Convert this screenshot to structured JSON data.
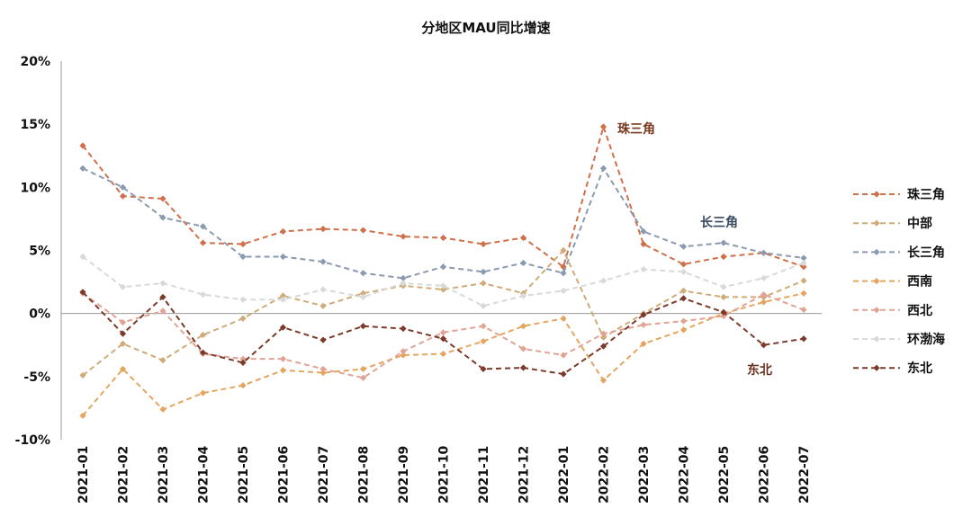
{
  "chart_data": {
    "type": "line",
    "title": "分地区MAU同比增速",
    "xlabel": "",
    "ylabel": "",
    "ylim": [
      -10,
      20
    ],
    "y_tick_labels": [
      "20%",
      "15%",
      "10%",
      "5%",
      "0%",
      "-5%",
      "-10%"
    ],
    "y_tick_values": [
      20,
      15,
      10,
      5,
      0,
      -5,
      -10
    ],
    "grid": false,
    "legend_position": "right",
    "categories": [
      "2021-01",
      "2021-02",
      "2021-03",
      "2021-04",
      "2021-05",
      "2021-06",
      "2021-07",
      "2021-08",
      "2021-09",
      "2021-10",
      "2021-11",
      "2021-12",
      "2022-01",
      "2022-02",
      "2022-03",
      "2022-04",
      "2022-05",
      "2022-06",
      "2022-07"
    ],
    "series": [
      {
        "name": "珠三角",
        "color": "#d0704a",
        "values": [
          13.3,
          9.3,
          9.1,
          5.6,
          5.5,
          6.5,
          6.7,
          6.6,
          6.1,
          6.0,
          5.5,
          6.0,
          3.7,
          14.8,
          5.5,
          3.9,
          4.5,
          4.8,
          3.7
        ]
      },
      {
        "name": "中部",
        "color": "#cfab78",
        "values": [
          -4.9,
          -2.4,
          -3.7,
          -1.7,
          -0.4,
          1.4,
          0.6,
          1.6,
          2.2,
          1.9,
          2.4,
          1.6,
          5.0,
          -1.9,
          0.0,
          1.8,
          1.3,
          1.3,
          2.6
        ]
      },
      {
        "name": "长三角",
        "color": "#8a9ab0",
        "values": [
          11.5,
          10.0,
          7.6,
          6.9,
          4.5,
          4.5,
          4.1,
          3.2,
          2.8,
          3.7,
          3.3,
          4.0,
          3.2,
          11.5,
          6.5,
          5.3,
          5.6,
          4.8,
          4.4
        ]
      },
      {
        "name": "西南",
        "color": "#e6a55f",
        "values": [
          -8.1,
          -4.4,
          -7.6,
          -6.3,
          -5.7,
          -4.5,
          -4.7,
          -4.4,
          -3.3,
          -3.2,
          -2.2,
          -1.0,
          -0.4,
          -5.3,
          -2.4,
          -1.3,
          0.0,
          0.9,
          1.6
        ]
      },
      {
        "name": "西北",
        "color": "#e0a394",
        "values": [
          1.6,
          -0.7,
          0.2,
          -3.2,
          -3.6,
          -3.6,
          -4.4,
          -5.1,
          -3.0,
          -1.5,
          -1.0,
          -2.8,
          -3.3,
          -1.6,
          -0.9,
          -0.6,
          -0.2,
          1.5,
          0.3
        ]
      },
      {
        "name": "环渤海",
        "color": "#d9d9d9",
        "values": [
          4.5,
          2.1,
          2.4,
          1.5,
          1.1,
          1.1,
          1.9,
          1.3,
          2.4,
          2.2,
          0.6,
          1.4,
          1.8,
          2.6,
          3.5,
          3.3,
          2.1,
          2.8,
          4.0
        ]
      },
      {
        "name": "东北",
        "color": "#7b3a2a",
        "values": [
          1.7,
          -1.6,
          1.3,
          -3.1,
          -3.9,
          -1.1,
          -2.1,
          -1.0,
          -1.2,
          -2.0,
          -4.4,
          -4.3,
          -4.8,
          -2.6,
          -0.1,
          1.2,
          0.1,
          -2.5,
          -2.0
        ]
      }
    ],
    "annotations": [
      {
        "text": "珠三角",
        "color": "#7a3a22"
      },
      {
        "text": "长三角",
        "color": "#3a4a5e"
      },
      {
        "text": "东北",
        "color": "#6a3020"
      }
    ]
  }
}
